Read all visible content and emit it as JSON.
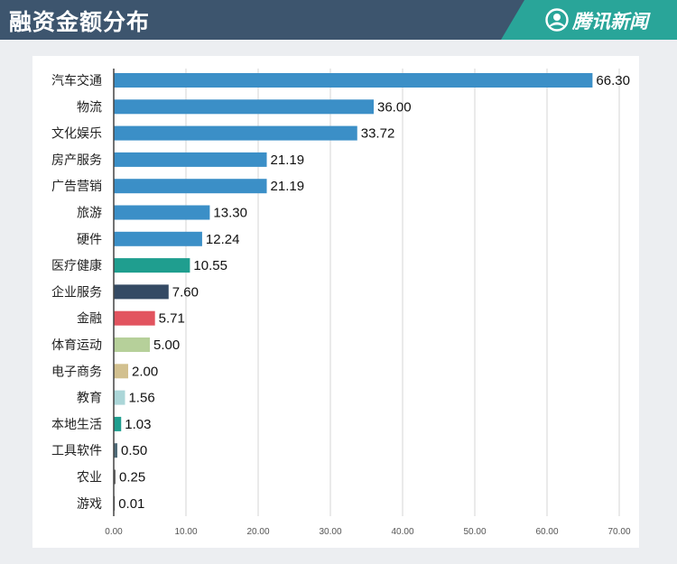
{
  "header": {
    "title": "融资金额分布",
    "brand": "腾讯新闻",
    "brand_icon": "tencent-news-logo-icon",
    "colors": {
      "bar": "#3d556e",
      "brand_panel": "#29a599"
    }
  },
  "chart_data": {
    "type": "bar",
    "orientation": "horizontal",
    "title": "融资金额分布",
    "xlabel": "",
    "ylabel": "",
    "xlim": [
      0,
      70
    ],
    "xticks": [
      "0.00",
      "10.00",
      "20.00",
      "30.00",
      "40.00",
      "50.00",
      "60.00",
      "70.00"
    ],
    "grid": true,
    "categories": [
      "汽车交通",
      "物流",
      "文化娱乐",
      "房产服务",
      "广告营销",
      "旅游",
      "硬件",
      "医疗健康",
      "企业服务",
      "金融",
      "体育运动",
      "电子商务",
      "教育",
      "本地生活",
      "工具软件",
      "农业",
      "游戏"
    ],
    "values": [
      66.3,
      36.0,
      33.72,
      21.19,
      21.19,
      13.3,
      12.24,
      10.55,
      7.6,
      5.71,
      5.0,
      2.0,
      1.56,
      1.03,
      0.5,
      0.25,
      0.01
    ],
    "value_labels": [
      "66.30",
      "36.00",
      "33.72",
      "21.19",
      "21.19",
      "13.30",
      "12.24",
      "10.55",
      "7.60",
      "5.71",
      "5.00",
      "2.00",
      "1.56",
      "1.03",
      "0.50",
      "0.25",
      "0.01"
    ],
    "colors": [
      "#3b8fc7",
      "#3b8fc7",
      "#3b8fc7",
      "#3b8fc7",
      "#3b8fc7",
      "#3b8fc7",
      "#3b8fc7",
      "#1f9e8f",
      "#344a64",
      "#e2545f",
      "#b6d09a",
      "#d2c08f",
      "#abd6d8",
      "#1f9e8f",
      "#4f6b78",
      "#6a6a6a",
      "#6a6a6a"
    ]
  }
}
